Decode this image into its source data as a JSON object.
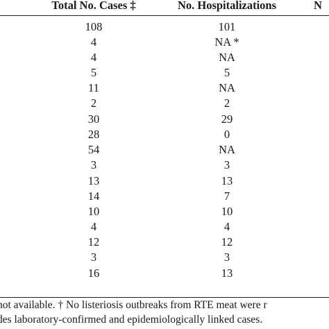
{
  "header": {
    "total_cases": "Total No. Cases ‡",
    "hospitalizations": "No. Hospitalizations",
    "third_col_partial": "N"
  },
  "rows": [
    {
      "cases": "108",
      "hosp": "101"
    },
    {
      "cases": "4",
      "hosp": "NA *"
    },
    {
      "cases": "4",
      "hosp": "NA"
    },
    {
      "cases": "5",
      "hosp": "5"
    },
    {
      "cases": "11",
      "hosp": "NA"
    },
    {
      "cases": "2",
      "hosp": "2"
    },
    {
      "cases": "30",
      "hosp": "29"
    },
    {
      "cases": "28",
      "hosp": "0"
    },
    {
      "cases": "54",
      "hosp": "NA"
    },
    {
      "cases": "3",
      "hosp": "3"
    },
    {
      "cases": "13",
      "hosp": "13"
    },
    {
      "cases": "14",
      "hosp": "7"
    },
    {
      "cases": "10",
      "hosp": "10"
    },
    {
      "cases": "4",
      "hosp": "4"
    },
    {
      "cases": "12",
      "hosp": "12"
    },
    {
      "cases": "3",
      "hosp": "3"
    },
    {
      "cases": "16",
      "hosp": "13"
    }
  ],
  "footnotes": {
    "line1": "not available. † No listeriosis outbreaks from RTE meat were r",
    "line2": "des laboratory-confirmed and epidemiologically linked cases."
  }
}
